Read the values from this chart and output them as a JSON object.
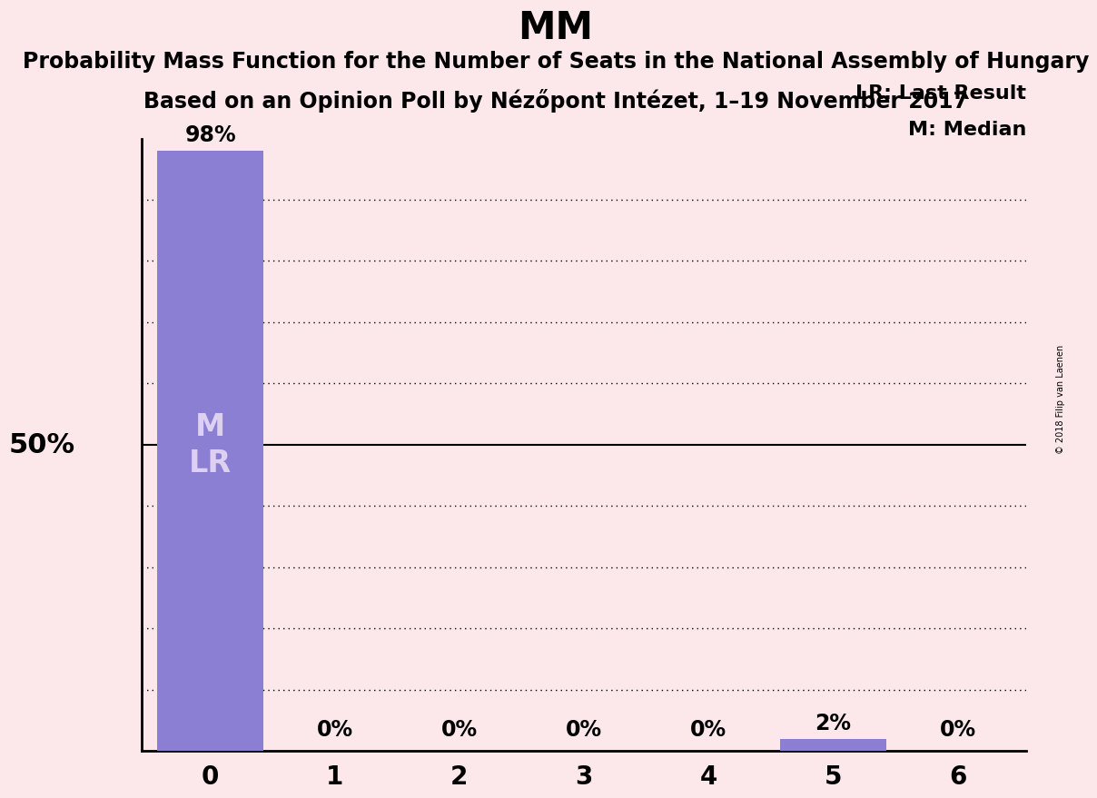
{
  "title": "MM",
  "subtitle1": "Probability Mass Function for the Number of Seats in the National Assembly of Hungary",
  "subtitle2": "Based on an Opinion Poll by Nézőpont Intézet, 1–19 November 2017",
  "copyright": "© 2018 Filip van Laenen",
  "categories": [
    0,
    1,
    2,
    3,
    4,
    5,
    6
  ],
  "values": [
    0.98,
    0.0,
    0.0,
    0.0,
    0.0,
    0.02,
    0.0
  ],
  "bar_color": "#8b7fd4",
  "background_color": "#fce8ea",
  "bar_labels": [
    "98%",
    "0%",
    "0%",
    "0%",
    "0%",
    "2%",
    "0%"
  ],
  "median_seat": 0,
  "last_result_seat": 0,
  "ylim": [
    0,
    1.0
  ],
  "yticks": [
    0.1,
    0.2,
    0.3,
    0.4,
    0.5,
    0.6,
    0.7,
    0.8,
    0.9
  ],
  "solid_ytick": 0.5,
  "ylabel_50": "50%",
  "legend_lr": "LR: Last Result",
  "legend_m": "M: Median",
  "title_fontsize": 30,
  "subtitle_fontsize": 17,
  "label_fontsize": 17,
  "tick_fontsize": 20,
  "ylabel_fontsize": 22,
  "legend_fontsize": 16,
  "mlr_fontsize": 24,
  "mlr_color": "#ddd0f0",
  "spine_color": "black",
  "dotted_color": "black",
  "solid_color": "black"
}
